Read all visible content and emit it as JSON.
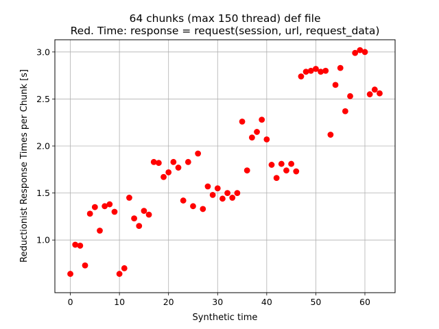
{
  "chart_data": {
    "type": "scatter",
    "title_line1": "64 chunks (max 150 thread) def file",
    "title_line2": "Red. Time: response = request(session, url, request_data)",
    "xlabel": "Synthetic time",
    "ylabel": "Reductionist Response Times per Chunk [s]",
    "xlim": [
      -3.15,
      66.15
    ],
    "ylim": [
      0.44,
      3.13
    ],
    "xticks": [
      0,
      10,
      20,
      30,
      40,
      50,
      60
    ],
    "yticks": [
      1.0,
      1.5,
      2.0,
      2.5,
      3.0
    ],
    "xtick_labels": [
      "0",
      "10",
      "20",
      "30",
      "40",
      "50",
      "60"
    ],
    "ytick_labels": [
      "1.0",
      "1.5",
      "2.0",
      "2.5",
      "3.0"
    ],
    "grid": true,
    "marker_color": "#ff0000",
    "x": [
      0,
      1,
      2,
      3,
      4,
      5,
      6,
      7,
      8,
      9,
      10,
      11,
      12,
      13,
      14,
      15,
      16,
      17,
      18,
      19,
      20,
      21,
      22,
      23,
      24,
      25,
      26,
      27,
      28,
      29,
      30,
      31,
      32,
      33,
      34,
      35,
      36,
      37,
      38,
      39,
      40,
      41,
      42,
      43,
      44,
      45,
      46,
      47,
      48,
      49,
      50,
      51,
      52,
      53,
      54,
      55,
      56,
      57,
      58,
      59,
      60,
      61,
      62,
      63
    ],
    "y": [
      0.64,
      0.95,
      0.94,
      0.73,
      1.28,
      1.35,
      1.1,
      1.36,
      1.38,
      1.3,
      0.64,
      0.7,
      1.45,
      1.23,
      1.15,
      1.31,
      1.27,
      1.83,
      1.82,
      1.67,
      1.72,
      1.83,
      1.77,
      1.42,
      1.83,
      1.36,
      1.92,
      1.33,
      1.57,
      1.48,
      1.55,
      1.44,
      1.5,
      1.45,
      1.5,
      2.26,
      1.74,
      2.09,
      2.15,
      2.28,
      2.07,
      1.8,
      1.66,
      1.81,
      1.74,
      1.81,
      1.73,
      2.74,
      2.79,
      2.8,
      2.82,
      2.79,
      2.8,
      2.12,
      2.65,
      2.83,
      2.37,
      2.53,
      2.99,
      3.02,
      3.0,
      2.55,
      2.6,
      2.56
    ]
  }
}
